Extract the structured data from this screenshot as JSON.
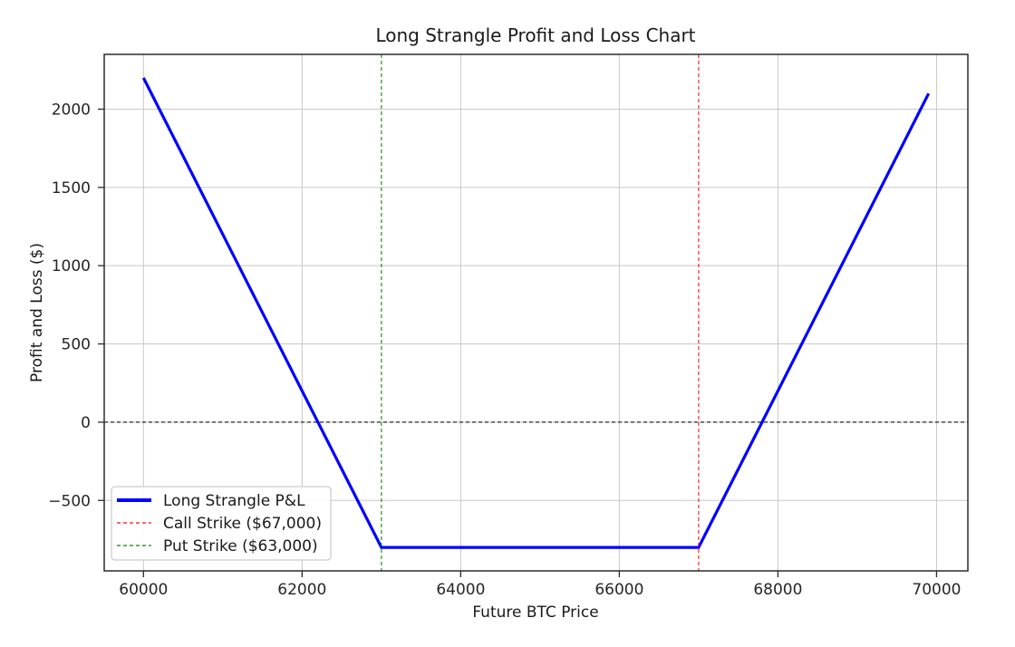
{
  "chart_data": {
    "type": "line",
    "title": "Long Strangle Profit and Loss Chart",
    "xlabel": "Future BTC Price",
    "ylabel": "Profit and Loss ($)",
    "xlim": [
      59505,
      70395
    ],
    "ylim": [
      -950,
      2350
    ],
    "xticks": [
      60000,
      62000,
      64000,
      66000,
      68000,
      70000
    ],
    "yticks": [
      -500,
      0,
      500,
      1000,
      1500,
      2000
    ],
    "grid": true,
    "grid_color": "#c8c8c8",
    "spine_color": "#2b2b2b",
    "series": [
      {
        "name": "Long Strangle P&L",
        "color": "#0000ff",
        "style": "solid",
        "points": [
          [
            60000,
            2200
          ],
          [
            63000,
            -800
          ],
          [
            67000,
            -800
          ],
          [
            69900,
            2100
          ]
        ]
      }
    ],
    "reference_lines": [
      {
        "id": "zero-line",
        "label": "",
        "orientation": "horizontal",
        "value": 0,
        "color": "#2b2b2b",
        "style": "dashed"
      },
      {
        "id": "call-strike-line",
        "label": "Call Strike ($67,000)",
        "orientation": "vertical",
        "value": 67000,
        "color": "#ff0000",
        "style": "dashed"
      },
      {
        "id": "put-strike-line",
        "label": "Put Strike ($63,000)",
        "orientation": "vertical",
        "value": 63000,
        "color": "#008000",
        "style": "dashed"
      }
    ],
    "legend": {
      "position": "lower left",
      "entries": [
        {
          "label": "Long Strangle P&L",
          "color": "#0000ff",
          "style": "solid"
        },
        {
          "label": "Call Strike ($67,000)",
          "color": "#ff0000",
          "style": "dashed"
        },
        {
          "label": "Put Strike ($63,000)",
          "color": "#008000",
          "style": "dashed"
        }
      ]
    }
  }
}
